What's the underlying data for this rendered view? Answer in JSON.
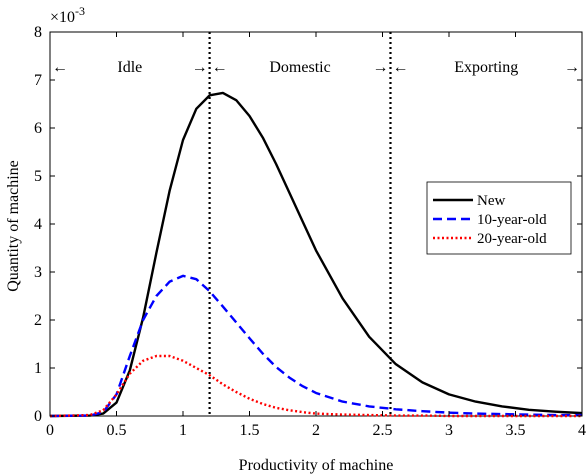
{
  "chart_data": {
    "type": "line",
    "title": "",
    "xlabel": "Productivity of machine",
    "ylabel": "Quantity of machine",
    "y_scale_label": "×10",
    "y_scale_exponent": "-3",
    "xlim": [
      0,
      4
    ],
    "ylim": [
      0,
      8
    ],
    "x_ticks": [
      0,
      0.5,
      1,
      1.5,
      2,
      2.5,
      3,
      3.5,
      4
    ],
    "x_tick_labels": [
      "0",
      "0.5",
      "1",
      "1.5",
      "2",
      "2.5",
      "3",
      "3.5",
      "4"
    ],
    "y_ticks": [
      0,
      1,
      2,
      3,
      4,
      5,
      6,
      7,
      8
    ],
    "y_tick_labels": [
      "0",
      "1",
      "2",
      "3",
      "4",
      "5",
      "6",
      "7",
      "8"
    ],
    "grid": false,
    "legend_position": "right",
    "thresholds": [
      1.2,
      2.56
    ],
    "regions": [
      {
        "label": "Idle",
        "from": 0,
        "to": 1.2
      },
      {
        "label": "Domestic",
        "from": 1.2,
        "to": 2.56
      },
      {
        "label": "Exporting",
        "from": 2.56,
        "to": 4
      }
    ],
    "series": [
      {
        "name": "New",
        "color": "#000000",
        "style": "solid",
        "x": [
          0,
          0.3,
          0.4,
          0.5,
          0.6,
          0.7,
          0.8,
          0.9,
          1.0,
          1.1,
          1.2,
          1.3,
          1.4,
          1.5,
          1.6,
          1.7,
          1.8,
          1.9,
          2.0,
          2.2,
          2.4,
          2.6,
          2.8,
          3.0,
          3.2,
          3.4,
          3.6,
          3.8,
          4.0
        ],
        "values": [
          0,
          0.01,
          0.05,
          0.28,
          0.95,
          2.05,
          3.4,
          4.7,
          5.75,
          6.4,
          6.68,
          6.73,
          6.58,
          6.25,
          5.8,
          5.25,
          4.65,
          4.05,
          3.45,
          2.45,
          1.65,
          1.08,
          0.7,
          0.45,
          0.3,
          0.2,
          0.13,
          0.09,
          0.06
        ]
      },
      {
        "name": "10-year-old",
        "color": "#0000ff",
        "style": "dashed",
        "x": [
          0,
          0.3,
          0.4,
          0.5,
          0.6,
          0.7,
          0.8,
          0.9,
          1.0,
          1.1,
          1.2,
          1.3,
          1.4,
          1.5,
          1.6,
          1.7,
          1.8,
          1.9,
          2.0,
          2.2,
          2.4,
          2.6,
          2.8,
          3.0,
          3.2,
          3.4,
          3.6,
          3.8,
          4.0
        ],
        "values": [
          0,
          0.01,
          0.08,
          0.45,
          1.25,
          2.0,
          2.5,
          2.8,
          2.92,
          2.85,
          2.6,
          2.28,
          1.95,
          1.62,
          1.3,
          1.02,
          0.8,
          0.62,
          0.48,
          0.3,
          0.2,
          0.14,
          0.1,
          0.07,
          0.05,
          0.04,
          0.03,
          0.02,
          0.02
        ]
      },
      {
        "name": "20-year-old",
        "color": "#ff0000",
        "style": "dotted",
        "x": [
          0,
          0.3,
          0.4,
          0.5,
          0.6,
          0.7,
          0.8,
          0.9,
          1.0,
          1.1,
          1.2,
          1.3,
          1.4,
          1.5,
          1.6,
          1.7,
          1.8,
          1.9,
          2.0,
          2.2,
          2.4,
          2.6,
          2.8,
          3.0,
          3.2,
          3.4,
          3.6,
          3.8,
          4.0
        ],
        "values": [
          0,
          0.02,
          0.12,
          0.45,
          0.88,
          1.15,
          1.25,
          1.25,
          1.15,
          1.0,
          0.85,
          0.66,
          0.5,
          0.36,
          0.25,
          0.17,
          0.12,
          0.08,
          0.05,
          0.03,
          0.02,
          0.01,
          0.01,
          0,
          0,
          0,
          0,
          0,
          0
        ]
      }
    ]
  }
}
